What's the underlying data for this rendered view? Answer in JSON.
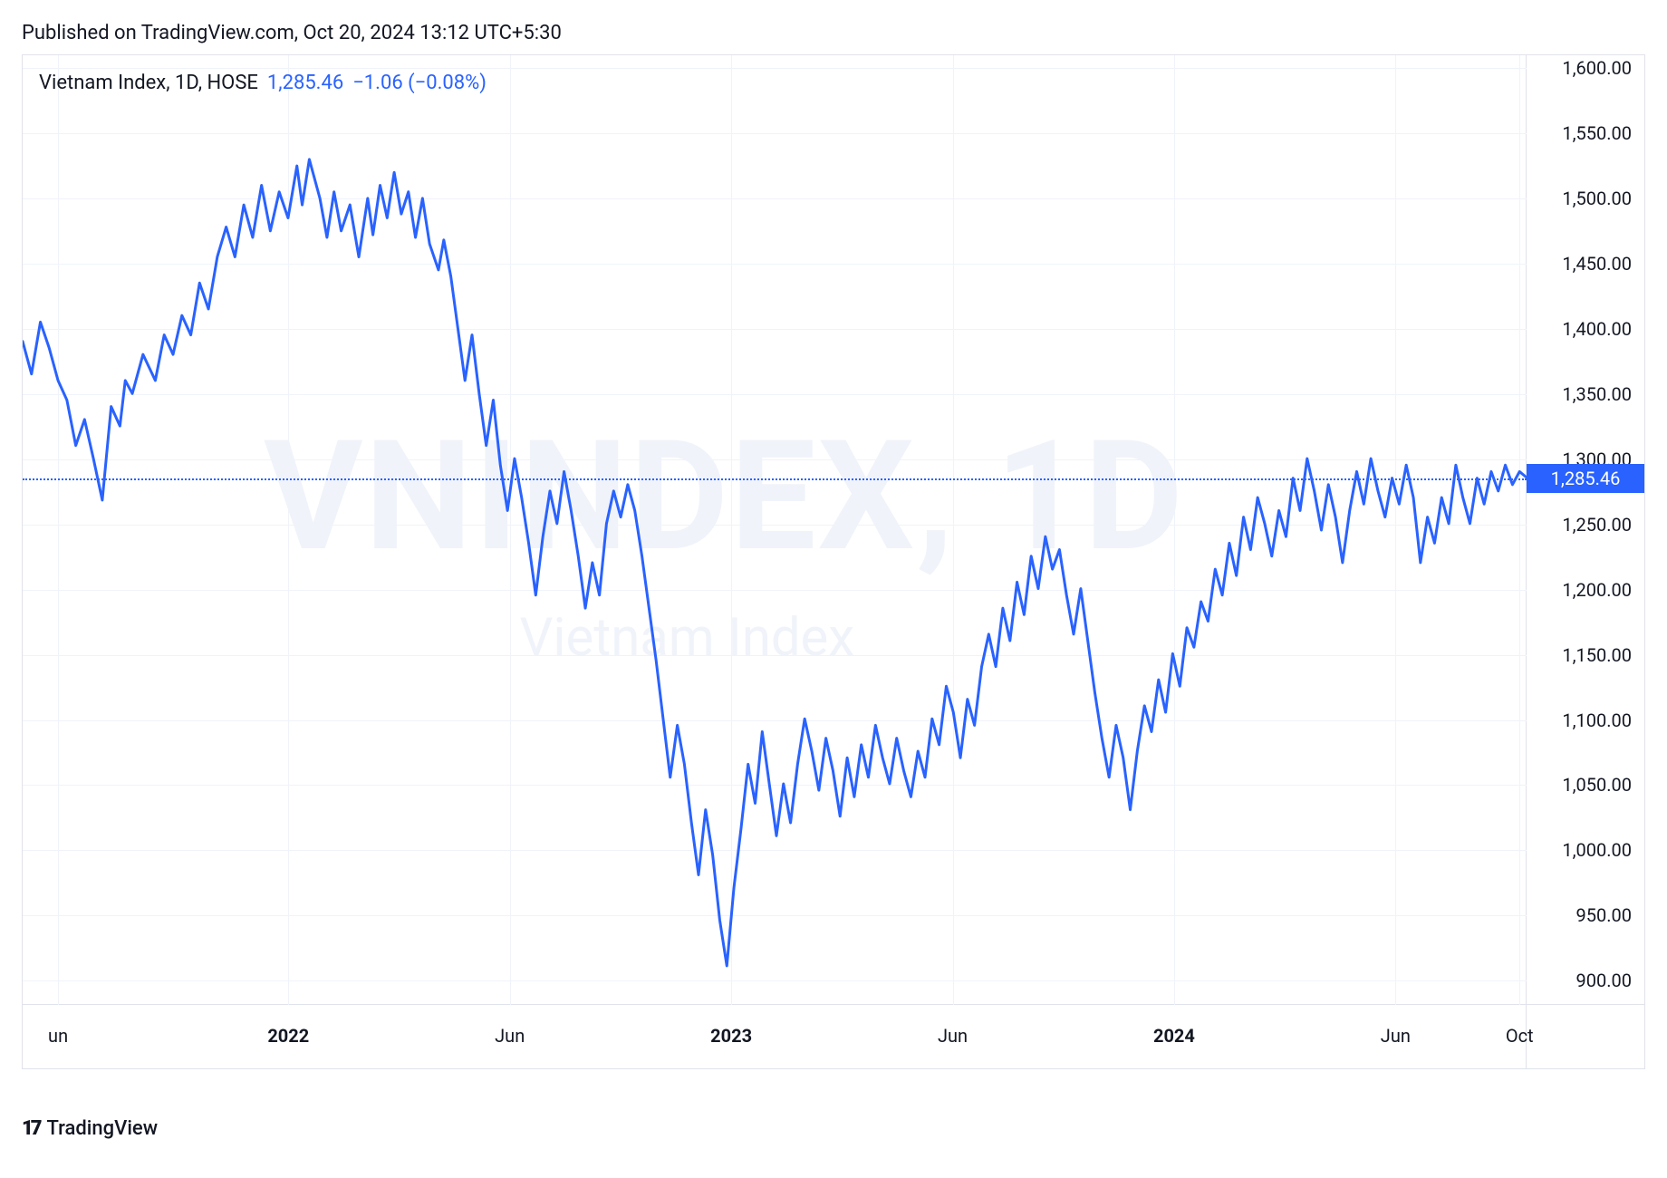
{
  "header": {
    "published_text": "Published on TradingView.com, Oct 20, 2024 13:12 UTC+5:30"
  },
  "chart": {
    "type": "line",
    "title_name": "Vietnam Index, 1D, HOSE",
    "last_price_text": "1,285.46",
    "change_text": "−1.06 (−0.08%)",
    "watermark_big": "VNINDEX, 1D",
    "watermark_small": "Vietnam Index",
    "line_color": "#2962ff",
    "line_width": 3,
    "background_color": "#ffffff",
    "grid_color": "#f0f3fa",
    "axis_border_color": "#e0e3eb",
    "text_color": "#131722",
    "price_line_color": "#2962ff",
    "price_badge_bg": "#2962ff",
    "price_badge_text_color": "#ffffff",
    "current_value": 1285.46,
    "y_axis": {
      "min": 880,
      "max": 1610,
      "ticks": [
        {
          "v": 900,
          "label": "900.00"
        },
        {
          "v": 950,
          "label": "950.00"
        },
        {
          "v": 1000,
          "label": "1,000.00"
        },
        {
          "v": 1050,
          "label": "1,050.00"
        },
        {
          "v": 1100,
          "label": "1,100.00"
        },
        {
          "v": 1150,
          "label": "1,150.00"
        },
        {
          "v": 1200,
          "label": "1,200.00"
        },
        {
          "v": 1250,
          "label": "1,250.00"
        },
        {
          "v": 1300,
          "label": "1,300.00"
        },
        {
          "v": 1350,
          "label": "1,350.00"
        },
        {
          "v": 1400,
          "label": "1,400.00"
        },
        {
          "v": 1450,
          "label": "1,450.00"
        },
        {
          "v": 1500,
          "label": "1,500.00"
        },
        {
          "v": 1550,
          "label": "1,550.00"
        },
        {
          "v": 1600,
          "label": "1,600.00"
        }
      ],
      "label_fontsize": 20
    },
    "x_axis": {
      "min": 0,
      "max": 850,
      "ticks": [
        {
          "v": 20,
          "label": "un",
          "bold": false
        },
        {
          "v": 150,
          "label": "2022",
          "bold": true
        },
        {
          "v": 275,
          "label": "Jun",
          "bold": false
        },
        {
          "v": 400,
          "label": "2023",
          "bold": true
        },
        {
          "v": 525,
          "label": "Jun",
          "bold": false
        },
        {
          "v": 650,
          "label": "2024",
          "bold": true
        },
        {
          "v": 775,
          "label": "Jun",
          "bold": false
        },
        {
          "v": 845,
          "label": "Oct",
          "bold": false
        }
      ],
      "label_fontsize": 20
    },
    "series": [
      {
        "x": 0,
        "y": 1390
      },
      {
        "x": 5,
        "y": 1365
      },
      {
        "x": 10,
        "y": 1405
      },
      {
        "x": 15,
        "y": 1385
      },
      {
        "x": 20,
        "y": 1360
      },
      {
        "x": 25,
        "y": 1345
      },
      {
        "x": 30,
        "y": 1310
      },
      {
        "x": 35,
        "y": 1330
      },
      {
        "x": 40,
        "y": 1300
      },
      {
        "x": 45,
        "y": 1268
      },
      {
        "x": 50,
        "y": 1340
      },
      {
        "x": 55,
        "y": 1325
      },
      {
        "x": 58,
        "y": 1360
      },
      {
        "x": 62,
        "y": 1350
      },
      {
        "x": 68,
        "y": 1380
      },
      {
        "x": 75,
        "y": 1360
      },
      {
        "x": 80,
        "y": 1395
      },
      {
        "x": 85,
        "y": 1380
      },
      {
        "x": 90,
        "y": 1410
      },
      {
        "x": 95,
        "y": 1395
      },
      {
        "x": 100,
        "y": 1435
      },
      {
        "x": 105,
        "y": 1415
      },
      {
        "x": 110,
        "y": 1455
      },
      {
        "x": 115,
        "y": 1478
      },
      {
        "x": 120,
        "y": 1455
      },
      {
        "x": 125,
        "y": 1495
      },
      {
        "x": 130,
        "y": 1470
      },
      {
        "x": 135,
        "y": 1510
      },
      {
        "x": 140,
        "y": 1475
      },
      {
        "x": 145,
        "y": 1505
      },
      {
        "x": 150,
        "y": 1485
      },
      {
        "x": 155,
        "y": 1525
      },
      {
        "x": 158,
        "y": 1495
      },
      {
        "x": 162,
        "y": 1530
      },
      {
        "x": 168,
        "y": 1500
      },
      {
        "x": 172,
        "y": 1470
      },
      {
        "x": 176,
        "y": 1505
      },
      {
        "x": 180,
        "y": 1475
      },
      {
        "x": 185,
        "y": 1495
      },
      {
        "x": 190,
        "y": 1455
      },
      {
        "x": 195,
        "y": 1500
      },
      {
        "x": 198,
        "y": 1472
      },
      {
        "x": 202,
        "y": 1510
      },
      {
        "x": 206,
        "y": 1485
      },
      {
        "x": 210,
        "y": 1520
      },
      {
        "x": 214,
        "y": 1488
      },
      {
        "x": 218,
        "y": 1505
      },
      {
        "x": 222,
        "y": 1470
      },
      {
        "x": 226,
        "y": 1500
      },
      {
        "x": 230,
        "y": 1465
      },
      {
        "x": 235,
        "y": 1445
      },
      {
        "x": 238,
        "y": 1468
      },
      {
        "x": 242,
        "y": 1440
      },
      {
        "x": 246,
        "y": 1400
      },
      {
        "x": 250,
        "y": 1360
      },
      {
        "x": 254,
        "y": 1395
      },
      {
        "x": 258,
        "y": 1350
      },
      {
        "x": 262,
        "y": 1310
      },
      {
        "x": 266,
        "y": 1345
      },
      {
        "x": 270,
        "y": 1295
      },
      {
        "x": 274,
        "y": 1260
      },
      {
        "x": 278,
        "y": 1300
      },
      {
        "x": 282,
        "y": 1270
      },
      {
        "x": 286,
        "y": 1235
      },
      {
        "x": 290,
        "y": 1195
      },
      {
        "x": 294,
        "y": 1240
      },
      {
        "x": 298,
        "y": 1275
      },
      {
        "x": 302,
        "y": 1250
      },
      {
        "x": 306,
        "y": 1290
      },
      {
        "x": 310,
        "y": 1260
      },
      {
        "x": 314,
        "y": 1225
      },
      {
        "x": 318,
        "y": 1185
      },
      {
        "x": 322,
        "y": 1220
      },
      {
        "x": 326,
        "y": 1195
      },
      {
        "x": 330,
        "y": 1250
      },
      {
        "x": 334,
        "y": 1275
      },
      {
        "x": 338,
        "y": 1255
      },
      {
        "x": 342,
        "y": 1280
      },
      {
        "x": 346,
        "y": 1260
      },
      {
        "x": 350,
        "y": 1225
      },
      {
        "x": 354,
        "y": 1185
      },
      {
        "x": 358,
        "y": 1145
      },
      {
        "x": 362,
        "y": 1100
      },
      {
        "x": 366,
        "y": 1055
      },
      {
        "x": 370,
        "y": 1095
      },
      {
        "x": 374,
        "y": 1065
      },
      {
        "x": 378,
        "y": 1020
      },
      {
        "x": 382,
        "y": 980
      },
      {
        "x": 386,
        "y": 1030
      },
      {
        "x": 390,
        "y": 995
      },
      {
        "x": 394,
        "y": 945
      },
      {
        "x": 398,
        "y": 910
      },
      {
        "x": 402,
        "y": 970
      },
      {
        "x": 406,
        "y": 1015
      },
      {
        "x": 410,
        "y": 1065
      },
      {
        "x": 414,
        "y": 1035
      },
      {
        "x": 418,
        "y": 1090
      },
      {
        "x": 422,
        "y": 1050
      },
      {
        "x": 426,
        "y": 1010
      },
      {
        "x": 430,
        "y": 1050
      },
      {
        "x": 434,
        "y": 1020
      },
      {
        "x": 438,
        "y": 1065
      },
      {
        "x": 442,
        "y": 1100
      },
      {
        "x": 446,
        "y": 1075
      },
      {
        "x": 450,
        "y": 1045
      },
      {
        "x": 454,
        "y": 1085
      },
      {
        "x": 458,
        "y": 1060
      },
      {
        "x": 462,
        "y": 1025
      },
      {
        "x": 466,
        "y": 1070
      },
      {
        "x": 470,
        "y": 1040
      },
      {
        "x": 474,
        "y": 1080
      },
      {
        "x": 478,
        "y": 1055
      },
      {
        "x": 482,
        "y": 1095
      },
      {
        "x": 486,
        "y": 1070
      },
      {
        "x": 490,
        "y": 1050
      },
      {
        "x": 494,
        "y": 1085
      },
      {
        "x": 498,
        "y": 1060
      },
      {
        "x": 502,
        "y": 1040
      },
      {
        "x": 506,
        "y": 1075
      },
      {
        "x": 510,
        "y": 1055
      },
      {
        "x": 514,
        "y": 1100
      },
      {
        "x": 518,
        "y": 1080
      },
      {
        "x": 522,
        "y": 1125
      },
      {
        "x": 526,
        "y": 1105
      },
      {
        "x": 530,
        "y": 1070
      },
      {
        "x": 534,
        "y": 1115
      },
      {
        "x": 538,
        "y": 1095
      },
      {
        "x": 542,
        "y": 1140
      },
      {
        "x": 546,
        "y": 1165
      },
      {
        "x": 550,
        "y": 1140
      },
      {
        "x": 554,
        "y": 1185
      },
      {
        "x": 558,
        "y": 1160
      },
      {
        "x": 562,
        "y": 1205
      },
      {
        "x": 566,
        "y": 1180
      },
      {
        "x": 570,
        "y": 1225
      },
      {
        "x": 574,
        "y": 1200
      },
      {
        "x": 578,
        "y": 1240
      },
      {
        "x": 582,
        "y": 1215
      },
      {
        "x": 586,
        "y": 1230
      },
      {
        "x": 590,
        "y": 1195
      },
      {
        "x": 594,
        "y": 1165
      },
      {
        "x": 598,
        "y": 1200
      },
      {
        "x": 602,
        "y": 1160
      },
      {
        "x": 606,
        "y": 1120
      },
      {
        "x": 610,
        "y": 1085
      },
      {
        "x": 614,
        "y": 1055
      },
      {
        "x": 618,
        "y": 1095
      },
      {
        "x": 622,
        "y": 1070
      },
      {
        "x": 626,
        "y": 1030
      },
      {
        "x": 630,
        "y": 1075
      },
      {
        "x": 634,
        "y": 1110
      },
      {
        "x": 638,
        "y": 1090
      },
      {
        "x": 642,
        "y": 1130
      },
      {
        "x": 646,
        "y": 1105
      },
      {
        "x": 650,
        "y": 1150
      },
      {
        "x": 654,
        "y": 1125
      },
      {
        "x": 658,
        "y": 1170
      },
      {
        "x": 662,
        "y": 1155
      },
      {
        "x": 666,
        "y": 1190
      },
      {
        "x": 670,
        "y": 1175
      },
      {
        "x": 674,
        "y": 1215
      },
      {
        "x": 678,
        "y": 1195
      },
      {
        "x": 682,
        "y": 1235
      },
      {
        "x": 686,
        "y": 1210
      },
      {
        "x": 690,
        "y": 1255
      },
      {
        "x": 694,
        "y": 1230
      },
      {
        "x": 698,
        "y": 1270
      },
      {
        "x": 702,
        "y": 1250
      },
      {
        "x": 706,
        "y": 1225
      },
      {
        "x": 710,
        "y": 1260
      },
      {
        "x": 714,
        "y": 1240
      },
      {
        "x": 718,
        "y": 1285
      },
      {
        "x": 722,
        "y": 1260
      },
      {
        "x": 726,
        "y": 1300
      },
      {
        "x": 730,
        "y": 1275
      },
      {
        "x": 734,
        "y": 1245
      },
      {
        "x": 738,
        "y": 1280
      },
      {
        "x": 742,
        "y": 1255
      },
      {
        "x": 746,
        "y": 1220
      },
      {
        "x": 750,
        "y": 1260
      },
      {
        "x": 754,
        "y": 1290
      },
      {
        "x": 758,
        "y": 1265
      },
      {
        "x": 762,
        "y": 1300
      },
      {
        "x": 766,
        "y": 1275
      },
      {
        "x": 770,
        "y": 1255
      },
      {
        "x": 774,
        "y": 1285
      },
      {
        "x": 778,
        "y": 1265
      },
      {
        "x": 782,
        "y": 1295
      },
      {
        "x": 786,
        "y": 1270
      },
      {
        "x": 790,
        "y": 1220
      },
      {
        "x": 794,
        "y": 1255
      },
      {
        "x": 798,
        "y": 1235
      },
      {
        "x": 802,
        "y": 1270
      },
      {
        "x": 806,
        "y": 1250
      },
      {
        "x": 810,
        "y": 1295
      },
      {
        "x": 814,
        "y": 1270
      },
      {
        "x": 818,
        "y": 1250
      },
      {
        "x": 822,
        "y": 1285
      },
      {
        "x": 826,
        "y": 1265
      },
      {
        "x": 830,
        "y": 1290
      },
      {
        "x": 834,
        "y": 1275
      },
      {
        "x": 838,
        "y": 1295
      },
      {
        "x": 842,
        "y": 1280
      },
      {
        "x": 846,
        "y": 1290
      },
      {
        "x": 850,
        "y": 1285.46
      }
    ]
  },
  "footer": {
    "brand_glyph": "17",
    "brand_text": "TradingView"
  }
}
